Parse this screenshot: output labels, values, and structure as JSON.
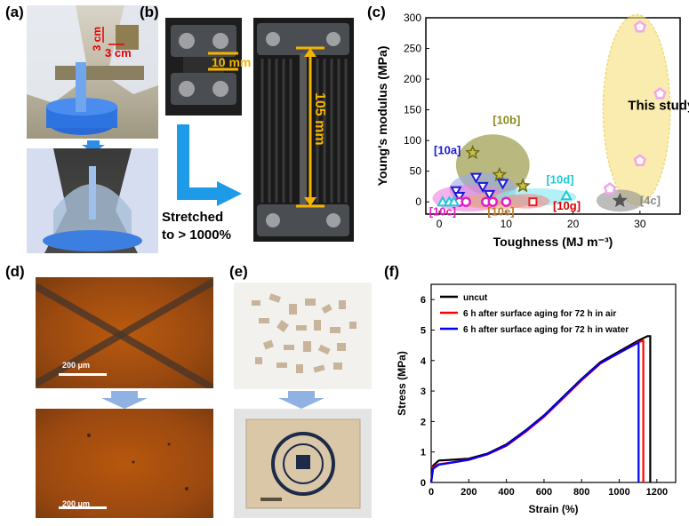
{
  "panels": {
    "a": {
      "label": "(a)",
      "dim_v": "3 cm",
      "dim_h": "3 cm"
    },
    "b": {
      "label": "(b)",
      "short_len": "10 mm",
      "long_len": "105 mm",
      "caption_l1": "Stretched",
      "caption_l2": "to > 1000%"
    },
    "c": {
      "label": "(c)"
    },
    "d": {
      "label": "(d)",
      "scale_top": "200 μm",
      "scale_bottom": "200 μm"
    },
    "e": {
      "label": "(e)"
    },
    "f": {
      "label": "(f)"
    }
  },
  "chart_data": [
    {
      "type": "scatter",
      "panel": "c",
      "xlabel": "Toughness (MJ m⁻³)",
      "ylabel": "Young's modulus (MPa)",
      "xlim": [
        -2,
        36
      ],
      "ylim": [
        -20,
        300
      ],
      "xticks": [
        0,
        10,
        20,
        30
      ],
      "yticks": [
        0,
        50,
        100,
        150,
        200,
        250,
        300
      ],
      "regions": [
        {
          "name": "This study",
          "color": "#f7e17a",
          "cx": 29.5,
          "cy": 150,
          "rx": 5,
          "ry": 155
        },
        {
          "name": "[10b]",
          "color": "#8b8b2a",
          "cx": 8,
          "cy": 60,
          "rx": 5.5,
          "ry": 50
        },
        {
          "name": "[10a]",
          "color": "#9aa9e8",
          "cx": 6.5,
          "cy": 20,
          "rx": 5,
          "ry": 28
        },
        {
          "name": "[10c]",
          "color": "#f07fe0",
          "cx": 4.5,
          "cy": 6,
          "rx": 5.5,
          "ry": 22
        },
        {
          "name": "[10e]",
          "color": "#e8a870",
          "cx": 8.5,
          "cy": 1,
          "rx": 5.5,
          "ry": 13
        },
        {
          "name": "[10d]",
          "color": "#7ee8ee",
          "cx": 14.5,
          "cy": 8,
          "rx": 6,
          "ry": 14
        },
        {
          "name": "[10g]",
          "color": "#f28a8a",
          "cx": 13,
          "cy": 1,
          "rx": 3.5,
          "ry": 12
        },
        {
          "name": "[4c]",
          "color": "#8f8f8f",
          "cx": 27,
          "cy": 2,
          "rx": 3.5,
          "ry": 18
        }
      ],
      "series": [
        {
          "name": "This study",
          "marker": "pentagon",
          "color": "#f2a6e8",
          "points": [
            [
              30,
              285
            ],
            [
              33,
              176
            ],
            [
              30,
              67
            ],
            [
              25.5,
              21
            ]
          ]
        },
        {
          "name": "[10b]",
          "marker": "star",
          "color": "#6d6d1a",
          "points": [
            [
              5,
              80
            ],
            [
              9,
              44
            ],
            [
              12.5,
              26
            ]
          ]
        },
        {
          "name": "[10a]",
          "marker": "triangle-down",
          "color": "#1a1ad6",
          "points": [
            [
              2.5,
              18
            ],
            [
              5.5,
              40
            ],
            [
              6.5,
              25
            ],
            [
              7.5,
              12
            ],
            [
              9.5,
              30
            ],
            [
              3,
              9
            ]
          ]
        },
        {
          "name": "[10c]",
          "marker": "circle",
          "color": "#e020c0",
          "points": [
            [
              3,
              0
            ],
            [
              4,
              0
            ],
            [
              7,
              0
            ],
            [
              8,
              0
            ],
            [
              10,
              0
            ]
          ]
        },
        {
          "name": "[10d]",
          "marker": "triangle-up",
          "color": "#20c8d8",
          "points": [
            [
              0.5,
              0
            ],
            [
              1.5,
              0
            ],
            [
              2.2,
              0
            ],
            [
              19,
              10
            ]
          ]
        },
        {
          "name": "[10g]",
          "marker": "square",
          "color": "#e02020",
          "points": [
            [
              14,
              0
            ]
          ]
        },
        {
          "name": "[4c]",
          "marker": "star",
          "color": "#555555",
          "points": [
            [
              27,
              2
            ]
          ]
        }
      ],
      "annotations": [
        "This study",
        "[10b]",
        "[10a]",
        "[10c]",
        "[10e]",
        "[10d]",
        "[10g]",
        "[4c]"
      ]
    },
    {
      "type": "line",
      "panel": "f",
      "xlabel": "Strain (%)",
      "ylabel": "Stress (MPa)",
      "xlim": [
        0,
        1300
      ],
      "ylim": [
        0,
        6.5
      ],
      "xticks": [
        0,
        200,
        400,
        600,
        800,
        1000,
        1200
      ],
      "yticks": [
        0,
        1,
        2,
        3,
        4,
        5,
        6
      ],
      "series": [
        {
          "name": "uncut",
          "color": "#000000",
          "points": [
            [
              0,
              0
            ],
            [
              10,
              0.55
            ],
            [
              40,
              0.72
            ],
            [
              100,
              0.74
            ],
            [
              200,
              0.78
            ],
            [
              300,
              0.95
            ],
            [
              400,
              1.25
            ],
            [
              500,
              1.7
            ],
            [
              600,
              2.2
            ],
            [
              700,
              2.8
            ],
            [
              800,
              3.4
            ],
            [
              900,
              3.95
            ],
            [
              1000,
              4.3
            ],
            [
              1100,
              4.65
            ],
            [
              1150,
              4.8
            ],
            [
              1165,
              4.8
            ],
            [
              1165,
              0
            ]
          ]
        },
        {
          "name": "6 h after surface aging for 72 h in air",
          "color": "#ff0000",
          "points": [
            [
              0,
              0
            ],
            [
              10,
              0.5
            ],
            [
              40,
              0.6
            ],
            [
              100,
              0.65
            ],
            [
              200,
              0.75
            ],
            [
              300,
              0.92
            ],
            [
              400,
              1.2
            ],
            [
              500,
              1.65
            ],
            [
              600,
              2.15
            ],
            [
              700,
              2.75
            ],
            [
              800,
              3.35
            ],
            [
              900,
              3.9
            ],
            [
              1000,
              4.25
            ],
            [
              1100,
              4.6
            ],
            [
              1128,
              4.65
            ],
            [
              1128,
              0
            ]
          ]
        },
        {
          "name": "6 h after surface aging for 72 h in water",
          "color": "#0000ff",
          "points": [
            [
              0,
              0
            ],
            [
              10,
              0.45
            ],
            [
              40,
              0.58
            ],
            [
              100,
              0.64
            ],
            [
              200,
              0.74
            ],
            [
              300,
              0.93
            ],
            [
              400,
              1.22
            ],
            [
              500,
              1.68
            ],
            [
              600,
              2.18
            ],
            [
              700,
              2.78
            ],
            [
              800,
              3.38
            ],
            [
              900,
              3.92
            ],
            [
              1000,
              4.25
            ],
            [
              1090,
              4.55
            ],
            [
              1103,
              4.58
            ],
            [
              1103,
              0
            ]
          ]
        }
      ]
    }
  ]
}
